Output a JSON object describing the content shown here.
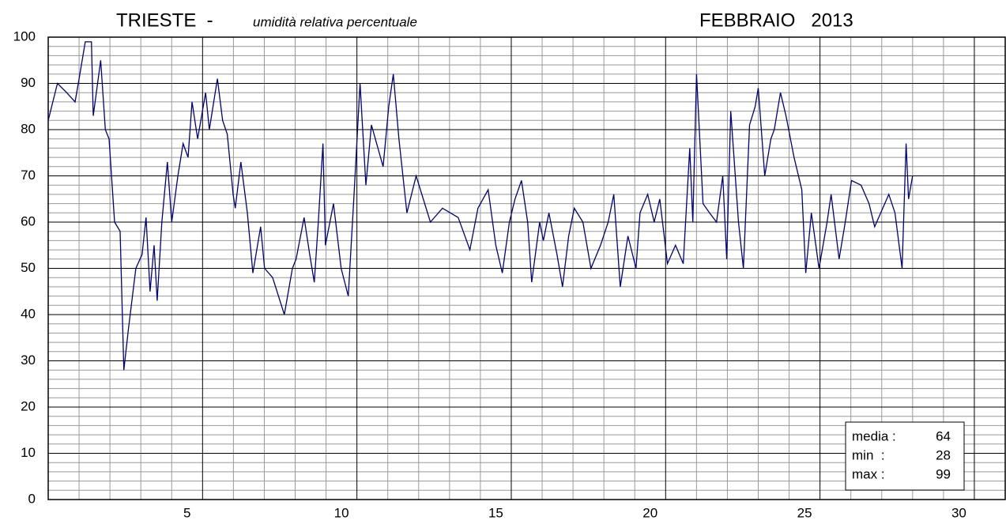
{
  "chart_data": {
    "type": "line",
    "title": "TRIESTE  -",
    "subtitle": "umidità relativa percentuale",
    "period": "FEBBRAIO   2013",
    "color": "#000080",
    "grid": true,
    "xlim": [
      0.5,
      31.5
    ],
    "xticks": [
      5,
      10,
      15,
      20,
      25,
      30
    ],
    "ylim": [
      0,
      100
    ],
    "yticks": [
      0,
      10,
      20,
      30,
      40,
      50,
      60,
      70,
      80,
      90,
      100
    ],
    "x": [
      0.5,
      0.8,
      1.1,
      1.37,
      1.5,
      1.7,
      1.9,
      1.96,
      2.2,
      2.35,
      2.47,
      2.65,
      2.83,
      2.95,
      3.1,
      3.34,
      3.54,
      3.67,
      3.8,
      3.93,
      4.03,
      4.18,
      4.36,
      4.5,
      4.7,
      4.87,
      5.03,
      5.16,
      5.34,
      5.6,
      5.72,
      5.98,
      6.15,
      6.3,
      6.49,
      6.56,
      6.74,
      6.95,
      7.13,
      7.38,
      7.51,
      7.77,
      8.15,
      8.41,
      8.53,
      8.79,
      8.97,
      9.12,
      9.25,
      9.4,
      9.48,
      9.74,
      9.99,
      10.22,
      10.4,
      10.6,
      10.79,
      10.97,
      11.35,
      11.53,
      11.68,
      11.86,
      12.12,
      12.42,
      12.88,
      13.27,
      13.78,
      14.16,
      14.42,
      14.75,
      15.0,
      15.21,
      15.44,
      15.62,
      15.83,
      16.03,
      16.16,
      16.42,
      16.54,
      16.72,
      16.98,
      17.16,
      17.36,
      17.54,
      17.82,
      18.08,
      18.39,
      18.64,
      18.82,
      19.03,
      19.28,
      19.54,
      19.67,
      19.92,
      20.13,
      20.31,
      20.56,
      20.82,
      21.07,
      21.28,
      21.38,
      21.5,
      21.71,
      21.92,
      22.15,
      22.35,
      22.48,
      22.61,
      22.86,
      23.02,
      23.22,
      23.4,
      23.5,
      23.71,
      23.91,
      24.02,
      24.22,
      24.4,
      24.66,
      24.91,
      25.04,
      25.22,
      25.47,
      25.73,
      25.86,
      26.12,
      26.32,
      26.52,
      26.83,
      27.09,
      27.27,
      27.73,
      27.93,
      28.16,
      28.29,
      28.37,
      28.5
    ],
    "values": [
      82,
      90,
      88,
      86,
      91,
      99,
      99,
      83,
      95,
      80,
      78,
      60,
      58,
      28,
      37,
      50,
      53,
      61,
      45,
      55,
      43,
      60,
      73,
      60,
      70,
      77,
      74,
      86,
      78,
      88,
      80,
      91,
      82,
      79,
      66,
      63,
      73,
      62,
      49,
      59,
      50,
      48,
      40,
      50,
      52,
      61,
      53,
      47,
      60,
      77,
      55,
      64,
      50,
      44,
      65,
      90,
      68,
      81,
      72,
      85,
      92,
      78,
      62,
      70,
      60,
      63,
      61,
      54,
      63,
      67,
      55,
      49,
      60,
      65,
      69,
      60,
      47,
      60,
      56,
      62,
      53,
      46,
      57,
      63,
      60,
      50,
      55,
      60,
      66,
      46,
      57,
      50,
      62,
      66,
      60,
      65,
      51,
      55,
      51,
      76,
      60,
      92,
      64,
      62,
      60,
      70,
      52,
      84,
      60,
      50,
      81,
      85,
      89,
      70,
      78,
      80,
      88,
      83,
      74,
      67,
      49,
      62,
      50,
      60,
      66,
      52,
      60,
      69,
      68,
      64,
      59,
      66,
      62,
      50,
      77,
      65,
      70
    ],
    "stats": [
      {
        "label": "media :",
        "value": 64
      },
      {
        "label": "min  :",
        "value": 28
      },
      {
        "label": "max :",
        "value": 99
      }
    ]
  }
}
